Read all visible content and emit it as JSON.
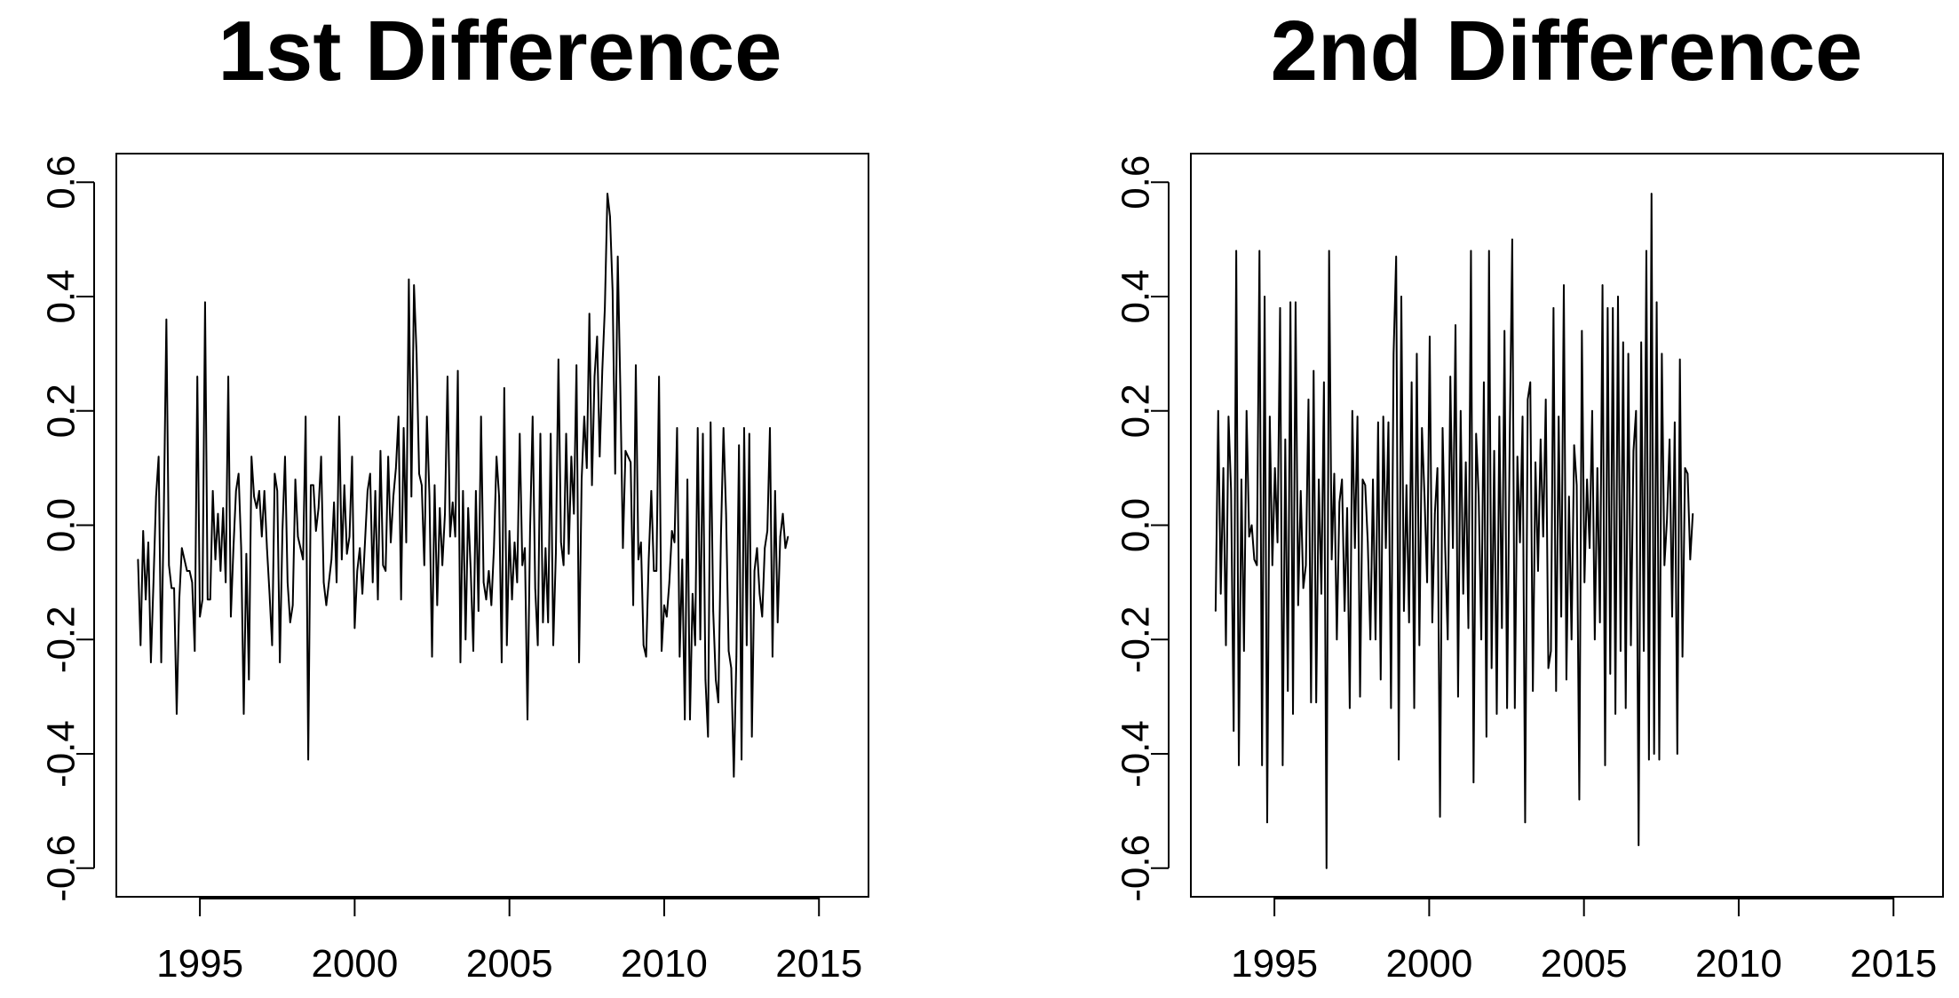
{
  "chart_data": [
    {
      "type": "line",
      "title": "1st Difference",
      "xlabel": "",
      "ylabel": "",
      "xlim": [
        1992.3,
        2016.6
      ],
      "ylim": [
        -0.65,
        0.65
      ],
      "x_ticks": [
        1995,
        2000,
        2005,
        2010,
        2015
      ],
      "x_tick_labels": [
        "1995",
        "2000",
        "2005",
        "2010",
        "2015"
      ],
      "y_ticks": [
        -0.6,
        -0.4,
        -0.2,
        0.0,
        0.2,
        0.4,
        0.6
      ],
      "y_tick_labels": [
        "-0.6",
        "-0.4",
        "-0.2",
        "0.0",
        "0.2",
        "0.4",
        "0.6"
      ],
      "grid": false,
      "line_color": "#000000",
      "x_start": 1993.0,
      "x_step": 0.08333,
      "series": [
        {
          "values": [
            -0.06,
            -0.21,
            -0.01,
            -0.13,
            -0.03,
            -0.24,
            -0.1,
            0.05,
            0.12,
            -0.24,
            0.02,
            0.36,
            -0.07,
            -0.11,
            -0.11,
            -0.33,
            -0.13,
            -0.04,
            -0.06,
            -0.08,
            -0.08,
            -0.1,
            -0.22,
            0.26,
            -0.16,
            -0.13,
            0.39,
            -0.13,
            -0.13,
            0.06,
            -0.06,
            0.02,
            -0.08,
            0.03,
            -0.1,
            0.26,
            -0.16,
            -0.04,
            0.06,
            0.09,
            -0.04,
            -0.33,
            -0.05,
            -0.27,
            0.12,
            0.05,
            0.03,
            0.06,
            -0.02,
            0.06,
            -0.04,
            -0.12,
            -0.21,
            0.09,
            0.06,
            -0.24,
            -0.01,
            0.12,
            -0.1,
            -0.17,
            -0.14,
            0.08,
            -0.02,
            -0.04,
            -0.06,
            0.19,
            -0.41,
            0.07,
            0.07,
            -0.01,
            0.03,
            0.12,
            -0.1,
            -0.14,
            -0.1,
            -0.06,
            0.04,
            -0.1,
            0.19,
            -0.06,
            0.07,
            -0.05,
            -0.02,
            0.12,
            -0.18,
            -0.08,
            -0.04,
            -0.12,
            -0.03,
            0.06,
            0.09,
            -0.1,
            0.06,
            -0.13,
            0.13,
            -0.07,
            -0.08,
            0.12,
            -0.03,
            0.05,
            0.1,
            0.19,
            -0.13,
            0.17,
            -0.03,
            0.43,
            0.05,
            0.42,
            0.3,
            0.09,
            0.07,
            -0.07,
            0.19,
            0.05,
            -0.23,
            0.07,
            -0.14,
            0.03,
            -0.07,
            0.02,
            0.26,
            -0.02,
            0.04,
            -0.02,
            0.27,
            -0.24,
            0.06,
            -0.2,
            0.03,
            -0.08,
            -0.22,
            0.06,
            -0.15,
            0.19,
            -0.1,
            -0.13,
            -0.08,
            -0.14,
            -0.04,
            0.12,
            0.05,
            -0.24,
            0.24,
            -0.21,
            -0.01,
            -0.13,
            -0.03,
            -0.1,
            0.16,
            -0.07,
            -0.04,
            -0.34,
            -0.01,
            0.19,
            -0.11,
            -0.21,
            0.16,
            -0.17,
            -0.04,
            -0.17,
            0.16,
            -0.21,
            -0.05,
            0.29,
            -0.03,
            -0.07,
            0.16,
            -0.05,
            0.12,
            0.02,
            0.28,
            -0.24,
            0.08,
            0.19,
            0.1,
            0.37,
            0.07,
            0.26,
            0.33,
            0.12,
            0.27,
            0.38,
            0.58,
            0.54,
            0.41,
            0.09,
            0.47,
            0.24,
            -0.04,
            0.13,
            0.12,
            0.11,
            -0.14,
            0.28,
            -0.06,
            -0.03,
            -0.21,
            -0.23,
            -0.06,
            0.06,
            -0.08,
            -0.08,
            0.26,
            -0.22,
            -0.14,
            -0.16,
            -0.1,
            -0.01,
            -0.03,
            0.17,
            -0.23,
            -0.06,
            -0.34,
            0.08,
            -0.34,
            -0.12,
            -0.21,
            0.17,
            -0.2,
            0.16,
            -0.27,
            -0.37,
            0.18,
            -0.15,
            -0.27,
            -0.31,
            -0.02,
            0.17,
            0.02,
            -0.22,
            -0.25,
            -0.44,
            -0.23,
            0.14,
            -0.41,
            0.17,
            -0.21,
            0.16,
            -0.37,
            -0.08,
            -0.04,
            -0.12,
            -0.16,
            -0.04,
            -0.01,
            0.17,
            -0.23,
            0.06,
            -0.17,
            -0.02,
            0.02,
            -0.04,
            -0.02
          ]
        }
      ]
    },
    {
      "type": "line",
      "title": "2nd Difference",
      "xlabel": "",
      "ylabel": "",
      "xlim": [
        1992.3,
        2016.6
      ],
      "ylim": [
        -0.65,
        0.65
      ],
      "x_ticks": [
        1995,
        2000,
        2005,
        2010,
        2015
      ],
      "x_tick_labels": [
        "1995",
        "2000",
        "2005",
        "2010",
        "2015"
      ],
      "y_ticks": [
        -0.6,
        -0.4,
        -0.2,
        0.0,
        0.2,
        0.4,
        0.6
      ],
      "y_tick_labels": [
        "-0.6",
        "-0.4",
        "-0.2",
        "0.0",
        "0.2",
        "0.4",
        "0.6"
      ],
      "grid": false,
      "line_color": "#000000",
      "x_start": 1993.1,
      "x_step": 0.08333,
      "series": [
        {
          "values": [
            -0.15,
            0.2,
            -0.12,
            0.1,
            -0.21,
            0.19,
            0.06,
            -0.36,
            0.48,
            -0.42,
            0.08,
            -0.22,
            0.2,
            -0.02,
            0,
            -0.06,
            -0.07,
            0.48,
            -0.42,
            0.4,
            -0.52,
            0.19,
            -0.07,
            0.1,
            -0.03,
            0.38,
            -0.42,
            0.15,
            -0.29,
            0.39,
            -0.33,
            0.39,
            -0.14,
            0.06,
            -0.11,
            -0.07,
            0.22,
            -0.31,
            0.27,
            -0.31,
            0.08,
            -0.12,
            0.25,
            -0.6,
            0.48,
            -0.06,
            0.09,
            -0.2,
            0.04,
            0.08,
            -0.15,
            0.03,
            -0.32,
            0.2,
            -0.04,
            0.19,
            -0.3,
            0.08,
            0.07,
            -0.03,
            -0.2,
            0.08,
            -0.2,
            0.18,
            -0.27,
            0.19,
            -0.04,
            0.18,
            -0.32,
            0.3,
            0.47,
            -0.41,
            0.4,
            -0.15,
            0.07,
            -0.17,
            0.25,
            -0.32,
            0.3,
            -0.21,
            0.17,
            0.05,
            -0.1,
            0.33,
            -0.17,
            0.02,
            0.1,
            -0.51,
            0.17,
            -0.04,
            -0.2,
            0.26,
            -0.04,
            0.35,
            -0.3,
            0.2,
            -0.12,
            0.11,
            -0.18,
            0.48,
            -0.45,
            0.16,
            0.05,
            -0.2,
            0.25,
            -0.37,
            0.48,
            -0.25,
            0.13,
            -0.33,
            0.19,
            -0.18,
            0.34,
            -0.32,
            0.14,
            0.5,
            -0.32,
            0.12,
            -0.03,
            0.19,
            -0.52,
            0.22,
            0.25,
            -0.29,
            0.11,
            -0.08,
            0.15,
            -0.02,
            0.22,
            -0.25,
            -0.22,
            0.38,
            -0.29,
            0.19,
            -0.16,
            0.42,
            -0.27,
            0.05,
            -0.2,
            0.14,
            0.07,
            -0.48,
            0.34,
            -0.1,
            0.08,
            -0.04,
            0.2,
            -0.2,
            0.1,
            -0.17,
            0.42,
            -0.42,
            0.38,
            -0.26,
            0.38,
            -0.33,
            0.4,
            -0.22,
            0.32,
            -0.32,
            0.3,
            -0.21,
            0.13,
            0.2,
            -0.56,
            0.32,
            -0.22,
            0.48,
            -0.41,
            0.58,
            -0.4,
            0.39,
            -0.41,
            0.3,
            -0.07,
            0.01,
            0.15,
            -0.16,
            0.18,
            -0.4,
            0.29,
            -0.23,
            0.1,
            0.09,
            -0.06,
            0.02
          ]
        }
      ]
    }
  ]
}
